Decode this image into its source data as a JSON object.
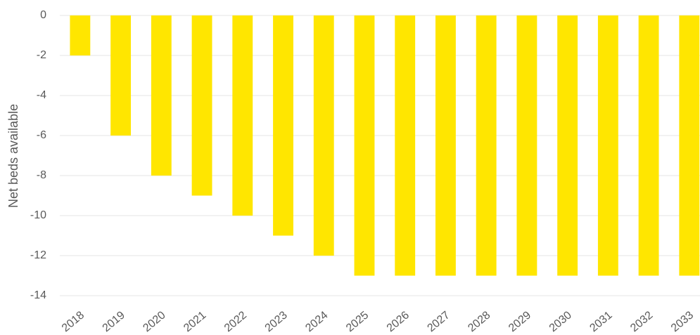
{
  "chart_data": {
    "type": "bar",
    "y_label": "Net beds available",
    "categories": [
      "2018",
      "2019",
      "2020",
      "2021",
      "2022",
      "2023",
      "2024",
      "2025",
      "2026",
      "2027",
      "2028",
      "2029",
      "2030",
      "2031",
      "2032",
      "2033"
    ],
    "values": [
      -2,
      -6,
      -8,
      -9,
      -10,
      -11,
      -12,
      -13,
      -13,
      -13,
      -13,
      -13,
      -13,
      -13,
      -13,
      -13
    ],
    "color": "#ffe600",
    "ylim": [
      -14,
      0
    ],
    "yticks": [
      0,
      -2,
      -4,
      -6,
      -8,
      -10,
      -12,
      -14
    ],
    "grid": true
  }
}
